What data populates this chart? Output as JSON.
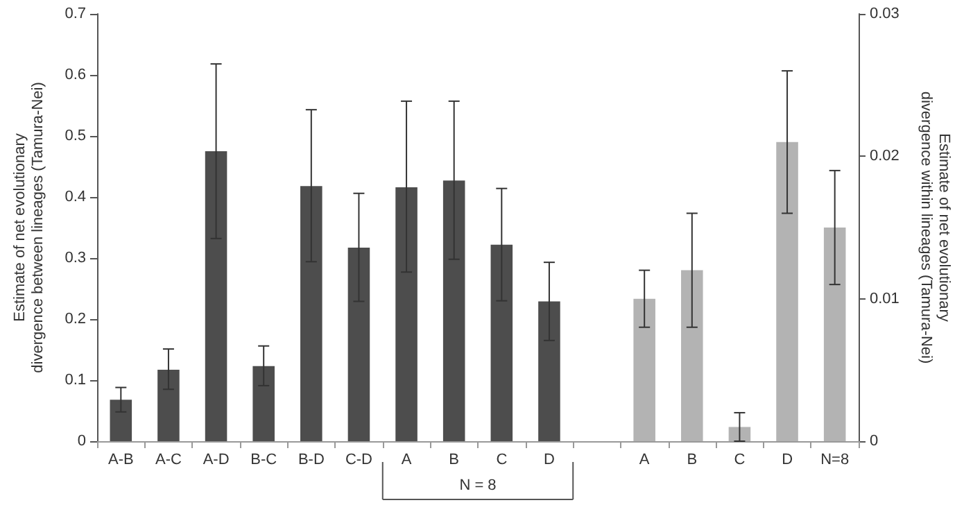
{
  "chart_data": {
    "type": "bar",
    "categories": [
      "A-B",
      "A-C",
      "A-D",
      "B-C",
      "B-D",
      "C-D",
      "A",
      "B",
      "C",
      "D",
      null,
      "A",
      "B",
      "C",
      "D",
      "N=8"
    ],
    "ylabel": "Estimate of net evolutionary divergence between lineages (Tamura-Nei)",
    "y2label": "Estimate of net evolutionary divergence within lineages (Tamura-Nei)",
    "ylim": [
      0,
      0.7
    ],
    "yticks": [
      0,
      0.1,
      0.2,
      0.3,
      0.4,
      0.5,
      0.6,
      0.7
    ],
    "y2lim": [
      0,
      0.03
    ],
    "y2ticks": [
      0,
      0.01,
      0.02,
      0.03
    ],
    "series": [
      {
        "color": "#4d4d4d",
        "values": [
          0.068,
          0.117,
          0.475,
          0.123,
          0.418,
          0.317,
          0.416,
          0.427,
          0.322,
          0.229,
          null,
          null,
          null,
          null,
          null,
          null
        ],
        "errors": [
          [
            0.048,
            0.088
          ],
          [
            0.085,
            0.151
          ],
          [
            0.332,
            0.618
          ],
          [
            0.091,
            0.156
          ],
          [
            0.294,
            0.543
          ],
          [
            0.229,
            0.406
          ],
          [
            0.277,
            0.557
          ],
          [
            0.298,
            0.557
          ],
          [
            0.23,
            0.414
          ],
          [
            0.165,
            0.293
          ],
          null,
          null,
          null,
          null,
          null,
          null
        ]
      },
      {
        "color": "#b3b3b3",
        "axis": "y2",
        "values": [
          null,
          null,
          null,
          null,
          null,
          null,
          null,
          null,
          null,
          null,
          null,
          0.01,
          0.012,
          0.001,
          0.021,
          0.015
        ],
        "errors": [
          null,
          null,
          null,
          null,
          null,
          null,
          null,
          null,
          null,
          null,
          null,
          [
            0.008,
            0.012
          ],
          [
            0.008,
            0.016
          ],
          [
            0,
            0.002
          ],
          [
            0.016,
            0.026
          ],
          [
            0.011,
            0.019
          ]
        ]
      }
    ],
    "annotations": [
      "N = 8"
    ],
    "grid": false
  }
}
